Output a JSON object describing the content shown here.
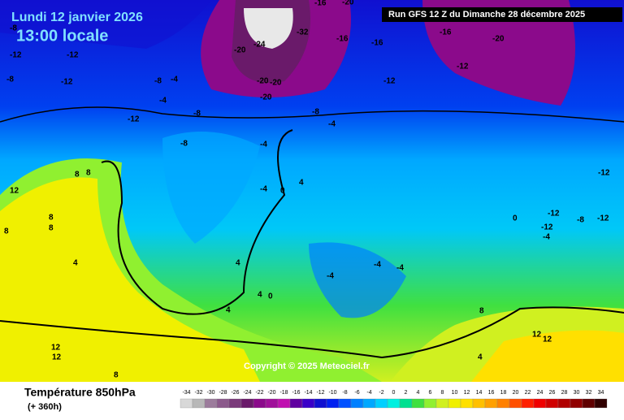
{
  "header": {
    "date": "Lundi 12 janvier 2026",
    "time": "13:00 locale",
    "run": "Run GFS 12 Z du Dimanche 28 décembre 2025",
    "copyright": "Copyright © 2025 Meteociel.fr"
  },
  "footer": {
    "title": "Température 850hPa",
    "lead": "(+ 360h)"
  },
  "scale": {
    "values": [
      -34,
      -32,
      -30,
      -28,
      -26,
      -24,
      -22,
      -20,
      -18,
      -16,
      -14,
      -12,
      -10,
      -8,
      -6,
      -4,
      -2,
      0,
      2,
      4,
      6,
      8,
      10,
      12,
      14,
      16,
      18,
      20,
      22,
      24,
      26,
      28,
      30,
      32,
      34
    ],
    "colors": [
      "#d8d8d8",
      "#b8b8b8",
      "#9c7c9c",
      "#8c5a8c",
      "#7a3a7a",
      "#6a1a6a",
      "#8b0a8b",
      "#a0109a",
      "#c010b0",
      "#6000a0",
      "#3a00c8",
      "#1010d0",
      "#0020f0",
      "#0050ff",
      "#0080ff",
      "#00a8ff",
      "#00d0ff",
      "#00f0e0",
      "#00e090",
      "#40e040",
      "#90f030",
      "#d0f020",
      "#f0f000",
      "#ffe000",
      "#ffc000",
      "#ffa000",
      "#ff8000",
      "#ff5000",
      "#ff2000",
      "#f00000",
      "#d00000",
      "#b00000",
      "#900000",
      "#600000",
      "#300000"
    ]
  },
  "map_labels": [
    "-8",
    "-12",
    "-12",
    "-8",
    "-12",
    "-8",
    "-4",
    "-8",
    "-4",
    "-20",
    "-24",
    "-32",
    "-20",
    "-20",
    "-20",
    "-16",
    "-16",
    "-20",
    "-16",
    "-12",
    "-20",
    "-16",
    "-12",
    "-8",
    "-12",
    "-8",
    "-4",
    "-4",
    "-4",
    "-12",
    "-8",
    "-12",
    "-4",
    "0",
    "4",
    "0",
    "-4",
    "8",
    "8",
    "12",
    "8",
    "8",
    "4",
    "4",
    "8",
    "8",
    "12",
    "12",
    "4",
    "0",
    "-4",
    "12",
    "12",
    "8",
    "4",
    "4",
    "-4",
    "-12",
    "-12"
  ]
}
